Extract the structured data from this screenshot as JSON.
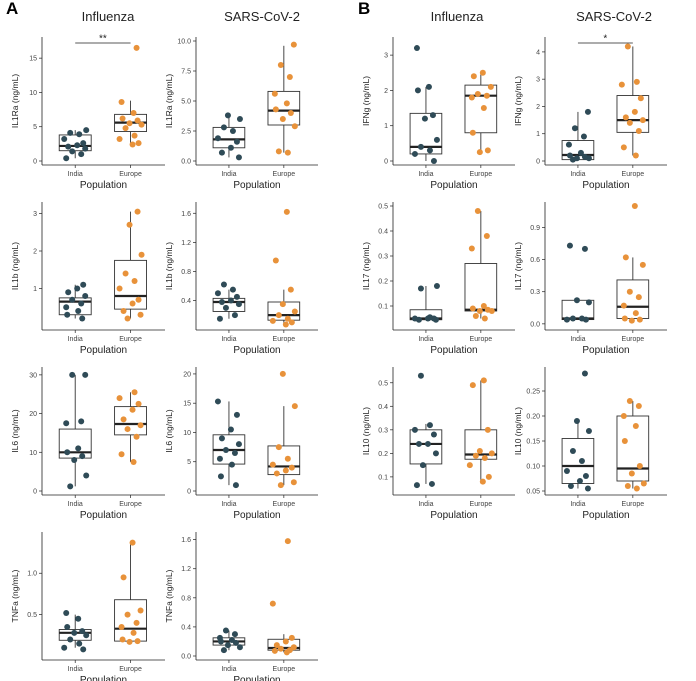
{
  "panel_letters": [
    "A",
    "B"
  ],
  "column_titles": [
    "Influenza",
    "SARS-CoV-2",
    "Influenza",
    "SARS-CoV-2"
  ],
  "colors": {
    "India": "#2f4b57",
    "Europe": "#e8923a",
    "axis": "#222222",
    "box": "#333333"
  },
  "chart_data": [
    {
      "id": "a_il1ra_flu",
      "type": "box",
      "title": "Influenza",
      "ylabel": "IL1Ra (ng/mL)",
      "xlabel": "Population",
      "categories": [
        "India",
        "Europe"
      ],
      "yticks": [
        "0",
        "5",
        "10",
        "15"
      ],
      "ylim": [
        0,
        17.5
      ],
      "box": [
        {
          "q1": 1.5,
          "med": 2.2,
          "q3": 3.8,
          "wlo": 0.4,
          "whi": 4.5
        },
        {
          "q1": 4.3,
          "med": 5.6,
          "q3": 6.8,
          "wlo": 2.4,
          "whi": 8.8
        }
      ],
      "points": [
        [
          0.4,
          1.0,
          1.4,
          1.8,
          2.1,
          2.3,
          2.6,
          3.2,
          3.9,
          4.1,
          4.5
        ],
        [
          2.4,
          2.6,
          3.2,
          3.7,
          4.8,
          5.3,
          5.5,
          5.9,
          6.2,
          7.0,
          8.6,
          16.5
        ]
      ],
      "sig": "**"
    },
    {
      "id": "a_il1ra_sars",
      "type": "box",
      "title": "SARS-CoV-2",
      "ylabel": "IL1Ra (ng/mL)",
      "xlabel": "Population",
      "categories": [
        "India",
        "Europe"
      ],
      "yticks": [
        "0.0",
        "2.5",
        "5.0",
        "7.5",
        "10.0"
      ],
      "ylim": [
        0,
        10
      ],
      "box": [
        {
          "q1": 1.1,
          "med": 1.8,
          "q3": 2.8,
          "wlo": 0.3,
          "whi": 3.8
        },
        {
          "q1": 3.0,
          "med": 4.2,
          "q3": 5.8,
          "wlo": 0.7,
          "whi": 9.6
        }
      ],
      "points": [
        [
          0.3,
          0.7,
          1.1,
          1.6,
          1.9,
          2.5,
          2.8,
          3.5,
          3.8
        ],
        [
          0.7,
          0.8,
          2.9,
          3.5,
          4.0,
          4.3,
          4.8,
          5.6,
          7.0,
          8.0,
          9.7
        ]
      ],
      "sig": ""
    },
    {
      "id": "b_ifng_flu",
      "type": "box",
      "title": "Influenza",
      "ylabel": "IFNg (ng/mL)",
      "xlabel": "Population",
      "categories": [
        "India",
        "Europe"
      ],
      "yticks": [
        "0",
        "1",
        "2",
        "3"
      ],
      "ylim": [
        0,
        3.4
      ],
      "box": [
        {
          "q1": 0.2,
          "med": 0.4,
          "q3": 1.35,
          "wlo": 0.0,
          "whi": 2.1
        },
        {
          "q1": 0.8,
          "med": 1.85,
          "q3": 2.15,
          "wlo": 0.25,
          "whi": 2.5
        }
      ],
      "points": [
        [
          0.0,
          0.2,
          0.3,
          0.4,
          0.6,
          1.2,
          1.3,
          2.0,
          2.1,
          3.2
        ],
        [
          0.25,
          0.3,
          0.8,
          1.5,
          1.8,
          1.85,
          1.9,
          2.1,
          2.4,
          2.5
        ]
      ],
      "sig": ""
    },
    {
      "id": "b_ifng_sars",
      "type": "box",
      "title": "SARS-CoV-2",
      "ylabel": "IFNg (ng/mL)",
      "xlabel": "Population",
      "categories": [
        "India",
        "Europe"
      ],
      "yticks": [
        "0",
        "1",
        "2",
        "3",
        "4"
      ],
      "ylim": [
        0,
        4.4
      ],
      "box": [
        {
          "q1": 0.05,
          "med": 0.22,
          "q3": 0.75,
          "wlo": 0.0,
          "whi": 1.8
        },
        {
          "q1": 1.05,
          "med": 1.5,
          "q3": 2.4,
          "wlo": 0.2,
          "whi": 4.2
        }
      ],
      "points": [
        [
          0.05,
          0.1,
          0.1,
          0.15,
          0.2,
          0.3,
          0.6,
          0.9,
          1.2,
          1.8
        ],
        [
          0.2,
          0.5,
          1.1,
          1.4,
          1.5,
          1.6,
          1.8,
          2.3,
          2.8,
          2.9,
          4.2
        ]
      ],
      "sig": "*"
    },
    {
      "id": "a_il1b_flu",
      "type": "box",
      "title": "Influenza",
      "ylabel": "IL1b (ng/mL)",
      "xlabel": "Population",
      "categories": [
        "India",
        "Europe"
      ],
      "yticks": [
        "1",
        "2",
        "3"
      ],
      "ylim": [
        0.0,
        3.2
      ],
      "box": [
        {
          "q1": 0.3,
          "med": 0.65,
          "q3": 0.75,
          "wlo": 0.2,
          "whi": 1.1
        },
        {
          "q1": 0.45,
          "med": 0.8,
          "q3": 1.75,
          "wlo": 0.2,
          "whi": 3.05
        }
      ],
      "points": [
        [
          0.2,
          0.3,
          0.4,
          0.5,
          0.6,
          0.7,
          0.8,
          0.9,
          1.0,
          1.1
        ],
        [
          0.2,
          0.3,
          0.4,
          0.6,
          0.7,
          1.0,
          1.2,
          1.4,
          1.9,
          2.7,
          3.05
        ]
      ],
      "sig": ""
    },
    {
      "id": "a_il1b_sars",
      "type": "box",
      "title": "SARS-CoV-2",
      "ylabel": "IL1b (ng/mL)",
      "xlabel": "Population",
      "categories": [
        "India",
        "Europe"
      ],
      "yticks": [
        "0.4",
        "0.8",
        "1.2",
        "1.6"
      ],
      "ylim": [
        0.05,
        1.7
      ],
      "box": [
        {
          "q1": 0.25,
          "med": 0.38,
          "q3": 0.43,
          "wlo": 0.15,
          "whi": 0.55
        },
        {
          "q1": 0.13,
          "med": 0.2,
          "q3": 0.38,
          "wlo": 0.07,
          "whi": 0.55
        }
      ],
      "points": [
        [
          0.15,
          0.2,
          0.3,
          0.35,
          0.38,
          0.4,
          0.45,
          0.5,
          0.55,
          0.62
        ],
        [
          0.07,
          0.1,
          0.12,
          0.15,
          0.2,
          0.25,
          0.35,
          0.55,
          0.95,
          1.62
        ]
      ],
      "sig": ""
    },
    {
      "id": "b_il17_flu",
      "type": "box",
      "title": "Influenza",
      "ylabel": "IL17 (ng/mL)",
      "xlabel": "Population",
      "categories": [
        "India",
        "Europe"
      ],
      "yticks": [
        "0.1",
        "0.2",
        "0.3",
        "0.4",
        "0.5"
      ],
      "ylim": [
        0.02,
        0.5
      ],
      "box": [
        {
          "q1": 0.045,
          "med": 0.05,
          "q3": 0.085,
          "wlo": 0.045,
          "whi": 0.18
        },
        {
          "q1": 0.08,
          "med": 0.085,
          "q3": 0.27,
          "wlo": 0.05,
          "whi": 0.48
        }
      ],
      "points": [
        [
          0.045,
          0.045,
          0.05,
          0.05,
          0.05,
          0.055,
          0.17,
          0.18
        ],
        [
          0.05,
          0.06,
          0.08,
          0.08,
          0.085,
          0.09,
          0.1,
          0.33,
          0.38,
          0.48
        ]
      ],
      "sig": ""
    },
    {
      "id": "b_il17_sars",
      "type": "box",
      "title": "SARS-CoV-2",
      "ylabel": "IL17 (ng/mL)",
      "xlabel": "Population",
      "categories": [
        "India",
        "Europe"
      ],
      "yticks": [
        "0.0",
        "0.3",
        "0.6",
        "0.9"
      ],
      "ylim": [
        -0.02,
        1.1
      ],
      "box": [
        {
          "q1": 0.04,
          "med": 0.05,
          "q3": 0.22,
          "wlo": 0.04,
          "whi": 0.22
        },
        {
          "q1": 0.05,
          "med": 0.16,
          "q3": 0.41,
          "wlo": 0.03,
          "whi": 0.62
        }
      ],
      "points": [
        [
          0.04,
          0.04,
          0.05,
          0.05,
          0.2,
          0.22,
          0.7,
          0.73
        ],
        [
          0.03,
          0.04,
          0.05,
          0.1,
          0.17,
          0.25,
          0.3,
          0.55,
          0.62,
          1.1
        ]
      ],
      "sig": ""
    },
    {
      "id": "a_il6_flu",
      "type": "box",
      "title": "Influenza",
      "ylabel": "IL6 (ng/mL)",
      "xlabel": "Population",
      "categories": [
        "India",
        "Europe"
      ],
      "yticks": [
        "0",
        "10",
        "20",
        "30"
      ],
      "ylim": [
        0,
        31
      ],
      "box": [
        {
          "q1": 8.5,
          "med": 10,
          "q3": 16,
          "wlo": 1.2,
          "whi": 30
        },
        {
          "q1": 14.5,
          "med": 17.3,
          "q3": 21.8,
          "wlo": 7.5,
          "whi": 25.5
        }
      ],
      "points": [
        [
          1.2,
          4.0,
          8.0,
          9.0,
          10.0,
          11.0,
          17.5,
          18.0,
          30.0,
          30.0
        ],
        [
          7.5,
          9.5,
          14.0,
          16.0,
          17.0,
          18.5,
          21.0,
          22.5,
          24.0,
          25.5
        ]
      ],
      "sig": ""
    },
    {
      "id": "a_il6_sars",
      "type": "box",
      "title": "SARS-CoV-2",
      "ylabel": "IL6 (ng/mL)",
      "xlabel": "Population",
      "categories": [
        "India",
        "Europe"
      ],
      "yticks": [
        "0",
        "5",
        "10",
        "15",
        "20"
      ],
      "ylim": [
        0,
        20.5
      ],
      "box": [
        {
          "q1": 4.6,
          "med": 7.0,
          "q3": 9.6,
          "wlo": 1.0,
          "whi": 15.3
        },
        {
          "q1": 2.8,
          "med": 4.2,
          "q3": 7.7,
          "wlo": 1.0,
          "whi": 14.5
        }
      ],
      "points": [
        [
          1.0,
          2.5,
          4.5,
          5.5,
          6.5,
          7.0,
          8.0,
          9.0,
          10.5,
          13.0,
          15.3
        ],
        [
          1.0,
          1.5,
          3.0,
          3.5,
          4.0,
          4.5,
          5.5,
          7.5,
          14.5,
          20.0
        ]
      ],
      "sig": ""
    },
    {
      "id": "b_il10_flu",
      "type": "box",
      "title": "Influenza",
      "ylabel": "IL10 (ng/mL)",
      "xlabel": "Population",
      "categories": [
        "India",
        "Europe"
      ],
      "yticks": [
        "0.1",
        "0.2",
        "0.3",
        "0.4",
        "0.5"
      ],
      "ylim": [
        0.04,
        0.55
      ],
      "box": [
        {
          "q1": 0.155,
          "med": 0.24,
          "q3": 0.3,
          "wlo": 0.07,
          "whi": 0.325
        },
        {
          "q1": 0.175,
          "med": 0.195,
          "q3": 0.3,
          "wlo": 0.08,
          "whi": 0.51
        }
      ],
      "points": [
        [
          0.065,
          0.07,
          0.15,
          0.2,
          0.24,
          0.24,
          0.28,
          0.3,
          0.32,
          0.53
        ],
        [
          0.08,
          0.1,
          0.15,
          0.18,
          0.19,
          0.2,
          0.21,
          0.3,
          0.49,
          0.51
        ]
      ],
      "sig": ""
    },
    {
      "id": "b_il10_sars",
      "type": "box",
      "title": "SARS-CoV-2",
      "ylabel": "IL10 (ng/mL)",
      "xlabel": "Population",
      "categories": [
        "India",
        "Europe"
      ],
      "yticks": [
        "0.05",
        "0.10",
        "0.15",
        "0.20",
        "0.25"
      ],
      "ylim": [
        0.05,
        0.29
      ],
      "box": [
        {
          "q1": 0.065,
          "med": 0.1,
          "q3": 0.155,
          "wlo": 0.055,
          "whi": 0.19
        },
        {
          "q1": 0.07,
          "med": 0.095,
          "q3": 0.2,
          "wlo": 0.055,
          "whi": 0.23
        }
      ],
      "points": [
        [
          0.055,
          0.06,
          0.07,
          0.08,
          0.09,
          0.11,
          0.13,
          0.17,
          0.19,
          0.285
        ],
        [
          0.055,
          0.06,
          0.065,
          0.085,
          0.1,
          0.15,
          0.18,
          0.2,
          0.22,
          0.23
        ]
      ],
      "sig": ""
    },
    {
      "id": "a_tnfa_flu",
      "type": "box",
      "title": "Influenza",
      "ylabel": "TNFa (ng/mL)",
      "xlabel": "Population",
      "categories": [
        "India",
        "Europe"
      ],
      "yticks": [
        "0.5",
        "1.0"
      ],
      "ylim": [
        0.0,
        1.45
      ],
      "box": [
        {
          "q1": 0.19,
          "med": 0.28,
          "q3": 0.32,
          "wlo": 0.1,
          "whi": 0.5
        },
        {
          "q1": 0.18,
          "med": 0.33,
          "q3": 0.68,
          "wlo": 0.17,
          "whi": 1.37
        }
      ],
      "points": [
        [
          0.08,
          0.1,
          0.15,
          0.2,
          0.25,
          0.28,
          0.3,
          0.35,
          0.45,
          0.52
        ],
        [
          0.17,
          0.18,
          0.2,
          0.28,
          0.35,
          0.4,
          0.5,
          0.55,
          0.95,
          1.37
        ]
      ],
      "sig": ""
    },
    {
      "id": "a_tnfa_sars",
      "type": "box",
      "title": "SARS-CoV-2",
      "ylabel": "TNFa (ng/mL)",
      "xlabel": "Population",
      "categories": [
        "India",
        "Europe"
      ],
      "yticks": [
        "0.0",
        "0.4",
        "0.8",
        "1.2",
        "1.6"
      ],
      "ylim": [
        0,
        1.65
      ],
      "box": [
        {
          "q1": 0.15,
          "med": 0.2,
          "q3": 0.25,
          "wlo": 0.08,
          "whi": 0.35
        },
        {
          "q1": 0.08,
          "med": 0.11,
          "q3": 0.23,
          "wlo": 0.05,
          "whi": 0.3
        }
      ],
      "points": [
        [
          0.08,
          0.12,
          0.15,
          0.18,
          0.2,
          0.22,
          0.25,
          0.3,
          0.35
        ],
        [
          0.05,
          0.07,
          0.08,
          0.1,
          0.12,
          0.15,
          0.2,
          0.25,
          0.72,
          1.58
        ]
      ],
      "sig": ""
    }
  ]
}
